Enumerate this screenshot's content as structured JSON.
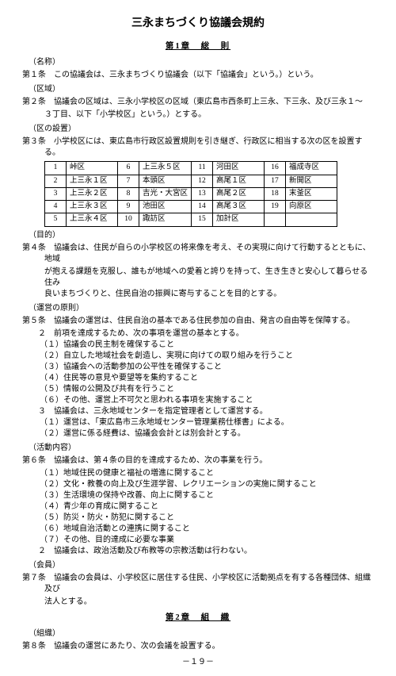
{
  "title": "三永まちづくり協議会規約",
  "chapter1": "第1章　総　則",
  "chapter2": "第2章　組　織",
  "s_name": "（名称）",
  "a1": "第１条　この協議会は、三永まちづくり協議会（以下「協議会」という。）という。",
  "s_area": "（区域）",
  "a2a": "第２条　協議会の区域は、三永小学校区の区域（東広島市西条町上三永、下三永、及び三永１～",
  "a2b": "３丁目、以下「小学校区」という。）とする。",
  "s_ku": "（区の設置）",
  "a3": "第３条　小学校区には、東広島市行政区設置規則を引き継ぎ、行政区に相当する次の区を設置する。",
  "table": {
    "rows": [
      [
        [
          "1",
          "峠区"
        ],
        [
          "6",
          "上三永５区"
        ],
        [
          "11",
          "河田区"
        ],
        [
          "16",
          "福成寺区"
        ]
      ],
      [
        [
          "2",
          "上三永１区"
        ],
        [
          "7",
          "本頭区"
        ],
        [
          "12",
          "高尾１区"
        ],
        [
          "17",
          "新開区"
        ]
      ],
      [
        [
          "3",
          "上三永２区"
        ],
        [
          "8",
          "吉光・大宮区"
        ],
        [
          "13",
          "高尾２区"
        ],
        [
          "18",
          "末釜区"
        ]
      ],
      [
        [
          "4",
          "上三永３区"
        ],
        [
          "9",
          "池田区"
        ],
        [
          "14",
          "高尾３区"
        ],
        [
          "19",
          "向原区"
        ]
      ],
      [
        [
          "5",
          "上三永４区"
        ],
        [
          "10",
          "諏訪区"
        ],
        [
          "15",
          "加計区"
        ],
        [
          "",
          ""
        ]
      ]
    ]
  },
  "s_purpose": "（目的）",
  "a4a": "第４条　協議会は、住民が自らの小学校区の将来像を考え、その実現に向けて行動するとともに、地域",
  "a4b": "が抱える課題を克服し、誰もが地域への愛着と誇りを持って、生き生きと安心して暮らせる住み",
  "a4c": "良いまちづくりと、住民自治の振興に寄与することを目的とする。",
  "s_principle": "（運営の原則）",
  "a5": "第５条　協議会の運営は、住民自治の基本である住民参加の自由、発言の自由等を保障する。",
  "a5_2": "２　前項を達成するため、次の事項を運営の基本とする。",
  "a5_2_1": "（１）協議会の民主制を確保すること",
  "a5_2_2": "（２）自立した地域社会を創造し、実現に向けての取り組みを行うこと",
  "a5_2_3": "（３）協議会への活動参加の公平性を確保すること",
  "a5_2_4": "（４）住民等の意見や要望等を集約すること",
  "a5_2_5": "（５）情報の公開及び共有を行うこと",
  "a5_2_6": "（６）その他、運営上不可欠と思われる事項を実施すること",
  "a5_3": "３　協議会は、三永地域センターを指定管理者として運営する。",
  "a5_3_1": "（１）運営は、「東広島市三永地域センター管理業務仕様書」による。",
  "a5_3_2": "（２）運営に係る経費は、協議会会計とは別会計とする。",
  "s_activity": "（活動内容）",
  "a6": "第６条　協議会は、第４条の目的を達成するため、次の事業を行う。",
  "a6_1": "（１）地域住民の健康と福祉の増進に関すること",
  "a6_2": "（２）文化・教養の向上及び生涯学習、レクリエーションの実施に関すること",
  "a6_3": "（３）生活環境の保持や改善、向上に関すること",
  "a6_4": "（４）青少年の育成に関すること",
  "a6_5": "（５）防災・防火・防犯に関すること",
  "a6_6": "（６）地域自治活動との連携に関すること",
  "a6_7": "（７）その他、目的達成に必要な事業",
  "a6_s2": "２　協議会は、政治活動及び布教等の宗教活動は行わない。",
  "s_member": "（会員）",
  "a7a": "第７条　協議会の会員は、小学校区に居住する住民、小学校区に活動拠点を有する各種団体、組織及び",
  "a7b": "法人とする。",
  "s_org": "（組織）",
  "a8": "第８条　協議会の運営にあたり、次の会議を設置する。",
  "pageno": "－１９－"
}
